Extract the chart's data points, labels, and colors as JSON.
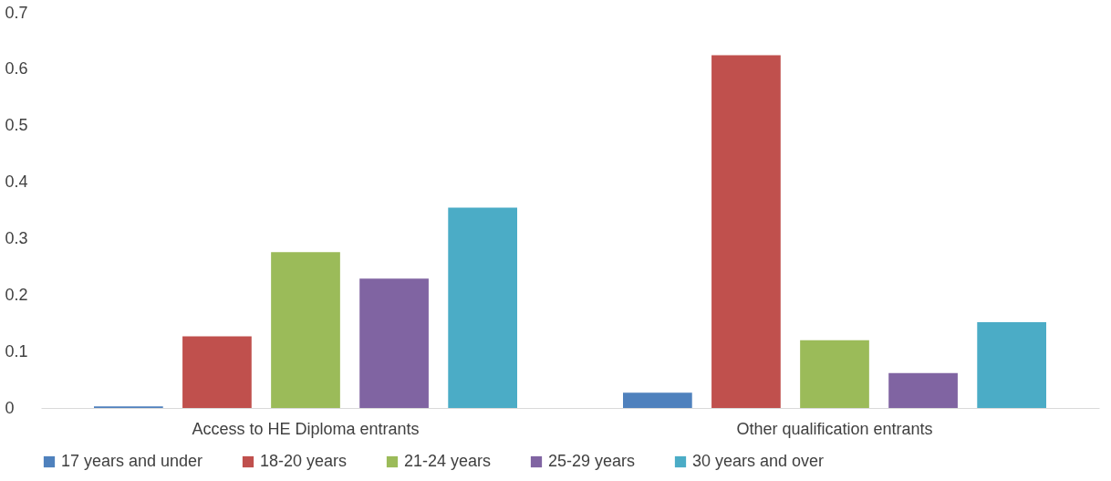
{
  "chart_data": {
    "type": "bar",
    "categories": [
      "Access to HE Diploma entrants",
      "Other qualification entrants"
    ],
    "series": [
      {
        "name": "17 years and under",
        "color": "#4f81bd",
        "values": [
          0.003,
          0.027
        ]
      },
      {
        "name": "18-20 years",
        "color": "#c0504d",
        "values": [
          0.127,
          0.625
        ]
      },
      {
        "name": "21-24 years",
        "color": "#9bbb59",
        "values": [
          0.276,
          0.12
        ]
      },
      {
        "name": "25-29 years",
        "color": "#8064a2",
        "values": [
          0.229,
          0.062
        ]
      },
      {
        "name": "30 years and over",
        "color": "#4bacc6",
        "values": [
          0.355,
          0.152
        ]
      }
    ],
    "ylim": [
      0,
      0.7
    ],
    "yticks": [
      0,
      0.1,
      0.2,
      0.3,
      0.4,
      0.5,
      0.6,
      0.7
    ],
    "grid": false,
    "legend": "bottom"
  }
}
